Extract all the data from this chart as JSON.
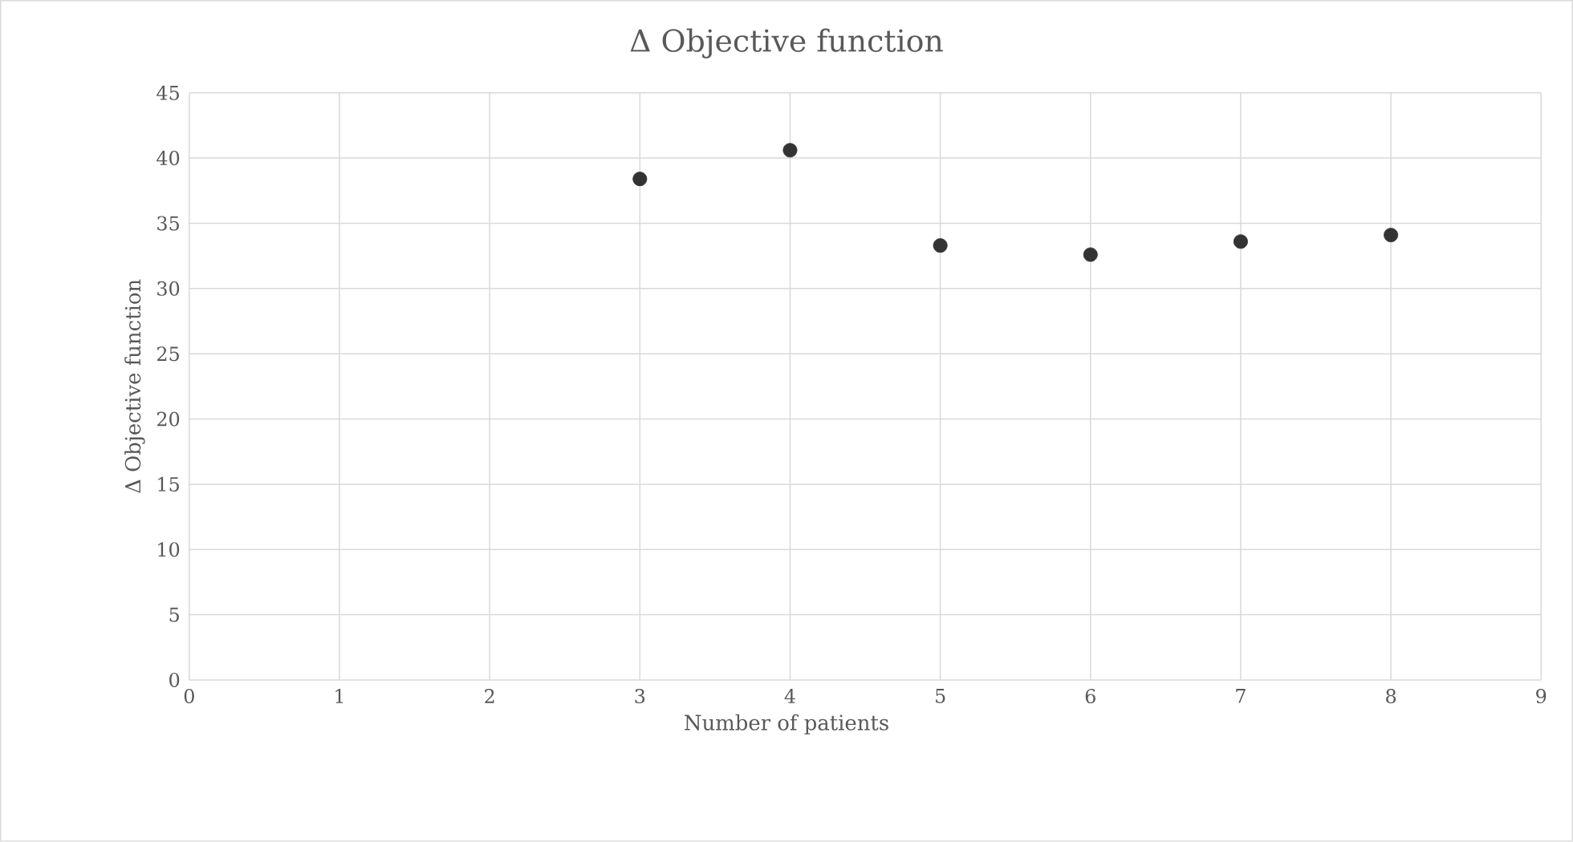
{
  "chart_data": {
    "type": "scatter",
    "title": "Δ Objective function",
    "xlabel": "Number of patients",
    "ylabel": "Δ Objective function",
    "x": [
      3,
      4,
      5,
      6,
      7,
      8
    ],
    "series": [
      {
        "color": "#333333",
        "values": [
          38.4,
          40.6,
          33.3,
          32.6,
          33.6,
          34.1
        ]
      }
    ],
    "xlim": [
      0,
      9
    ],
    "xticks": [
      0,
      1,
      2,
      3,
      4,
      5,
      6,
      7,
      8,
      9
    ],
    "ylim": [
      0,
      45
    ],
    "yticks": [
      0,
      5,
      10,
      15,
      20,
      25,
      30,
      35,
      40,
      45
    ],
    "grid": true,
    "marker": "circle"
  }
}
